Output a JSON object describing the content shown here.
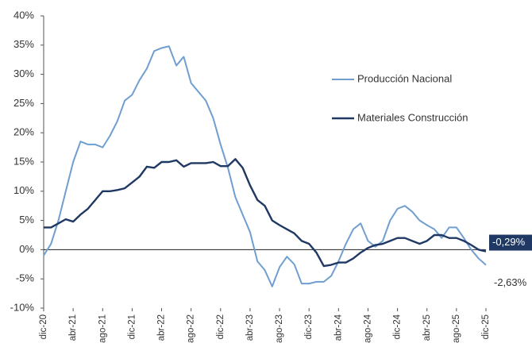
{
  "chart_data": {
    "type": "line",
    "categories": [
      "dic-20",
      null,
      null,
      null,
      "abr-21",
      null,
      null,
      null,
      "ago-21",
      null,
      null,
      null,
      "dic-21",
      null,
      null,
      null,
      "abr-22",
      null,
      null,
      null,
      "ago-22",
      null,
      null,
      null,
      "dic-22",
      null,
      null,
      null,
      "abr-23",
      null,
      null,
      null,
      "ago-23",
      null,
      null,
      null,
      "dic-23",
      null,
      null,
      null,
      "abr-24",
      null,
      null,
      null,
      "ago-24",
      null,
      null,
      null,
      "dic-24",
      null,
      null,
      null,
      "abr-25",
      null,
      null,
      null,
      "ago-25",
      null,
      null,
      null,
      "dic-25"
    ],
    "series": [
      {
        "name": "Producción Nacional",
        "color": "#6f9fd0",
        "values": [
          -1,
          1,
          5,
          10,
          15,
          18.5,
          18,
          18,
          17.5,
          19.5,
          22,
          25.5,
          26.5,
          29,
          31,
          34,
          34.5,
          34.8,
          31.5,
          33,
          28.5,
          27,
          25.5,
          22.5,
          18,
          14,
          9,
          6,
          3,
          -2,
          -3.5,
          -6.3,
          -3,
          -1.2,
          -2.5,
          -5.8,
          -5.8,
          -5.5,
          -5.5,
          -4.5,
          -2,
          1,
          3.5,
          4.5,
          1.5,
          0.5,
          1.5,
          5,
          7,
          7.5,
          6.5,
          5,
          4.2,
          3.5,
          2,
          3.8,
          3.8,
          2,
          0,
          -1.5,
          -2.63
        ],
        "value_labels": [
          null,
          null,
          null,
          null,
          null,
          null,
          null,
          null,
          null,
          null,
          null,
          null,
          null,
          null,
          null,
          null,
          null,
          null,
          null,
          null,
          null,
          null,
          null,
          null,
          null,
          null,
          null,
          null,
          null,
          null,
          null,
          null,
          null,
          null,
          null,
          null,
          null,
          null,
          null,
          null,
          null,
          null,
          null,
          null,
          null,
          null,
          null,
          null,
          null,
          null,
          null,
          null,
          null,
          null,
          null,
          null,
          null,
          null,
          null,
          null,
          "-2,63%"
        ]
      },
      {
        "name": "Materiales Construcción",
        "color": "#1f3864",
        "values": [
          3.8,
          3.8,
          4.5,
          5.2,
          4.8,
          6,
          7,
          8.5,
          10,
          10,
          10.2,
          10.5,
          11.5,
          12.5,
          14.2,
          14,
          15,
          15,
          15.3,
          14.2,
          14.8,
          14.8,
          14.8,
          15,
          14.3,
          14.3,
          15.5,
          14,
          11,
          8.5,
          7.5,
          5,
          4.2,
          3.5,
          2.8,
          1.5,
          1,
          -0.5,
          -2.8,
          -2.6,
          -2.2,
          -2.2,
          -1.5,
          -0.5,
          0.3,
          0.8,
          1,
          1.5,
          2,
          2,
          1.5,
          1,
          1.5,
          2.5,
          2.5,
          2,
          2,
          1.5,
          0.8,
          0,
          -0.29
        ],
        "value_labels": [
          null,
          null,
          null,
          null,
          null,
          null,
          null,
          null,
          null,
          null,
          null,
          null,
          null,
          null,
          null,
          null,
          null,
          null,
          null,
          null,
          null,
          null,
          null,
          null,
          null,
          null,
          null,
          null,
          null,
          null,
          null,
          null,
          null,
          null,
          null,
          null,
          null,
          null,
          null,
          null,
          null,
          null,
          null,
          null,
          null,
          null,
          null,
          null,
          null,
          null,
          null,
          null,
          null,
          null,
          null,
          null,
          null,
          null,
          null,
          null,
          "-0,29%"
        ]
      }
    ],
    "ylim": [
      -10,
      40
    ],
    "yticks": [
      {
        "value": -10,
        "label": "-10%"
      },
      {
        "value": -5,
        "label": "-5%"
      },
      {
        "value": 0,
        "label": "0%"
      },
      {
        "value": 5,
        "label": "5%"
      },
      {
        "value": 10,
        "label": "10%"
      },
      {
        "value": 15,
        "label": "15%"
      },
      {
        "value": 20,
        "label": "20%"
      },
      {
        "value": 25,
        "label": "25%"
      },
      {
        "value": 30,
        "label": "30%"
      },
      {
        "value": 35,
        "label": "35%"
      },
      {
        "value": 40,
        "label": "40%"
      }
    ],
    "grid": false
  }
}
